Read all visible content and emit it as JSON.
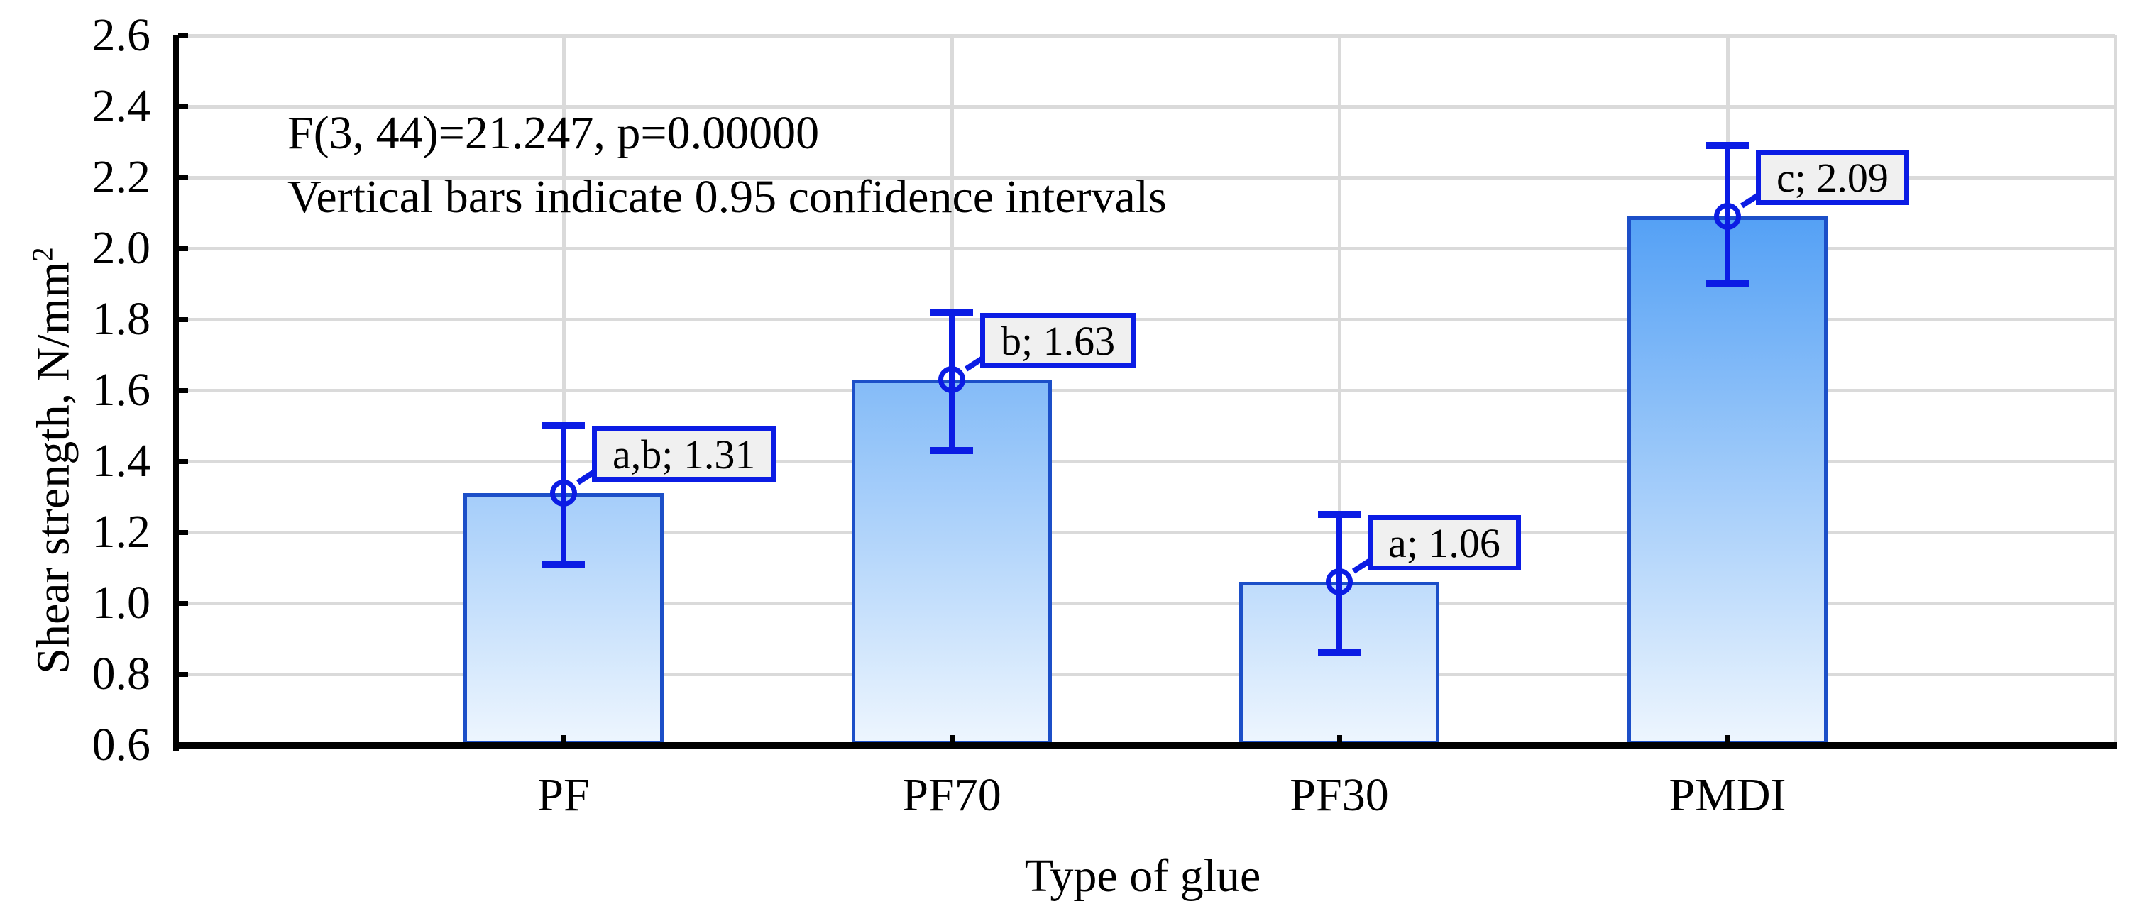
{
  "chart_data": {
    "type": "bar",
    "xlabel": "Type of glue",
    "ylabel": "Shear strength, N/mm2",
    "ylabel_base": "Shear strength, N/mm",
    "ylabel_sup": "2",
    "categories": [
      "PF",
      "PF70",
      "PF30",
      "PMDI"
    ],
    "values": [
      1.31,
      1.63,
      1.06,
      2.09
    ],
    "ci_low": [
      1.11,
      1.43,
      0.86,
      1.9
    ],
    "ci_high": [
      1.5,
      1.82,
      1.25,
      2.29
    ],
    "point_labels": [
      "a,b; 1.31",
      "b; 1.63",
      "a; 1.06",
      "c; 2.09"
    ],
    "annotation": {
      "line1": "F(3, 44)=21.247, p=0.00000",
      "line2": "Vertical bars indicate 0.95 confidence intervals"
    },
    "ylim": [
      0.6,
      2.6
    ],
    "ytick_labels": [
      "0.6",
      "0.8",
      "1.0",
      "1.2",
      "1.4",
      "1.6",
      "1.8",
      "2.0",
      "2.2",
      "2.4",
      "2.6"
    ],
    "legend": "none",
    "grid": {
      "horizontal_major": true,
      "vertical_at_category_centers": true,
      "right_edge_line": true
    },
    "colors": {
      "background": "#ffffff",
      "gridline": "#dadada",
      "axis": "#000000",
      "text": "#000000",
      "bar_gradient_top": "#1f83f2",
      "bar_gradient_bottom": "#eef6fe",
      "bar_border": "#1c4fc8",
      "error": "#0b1ce4",
      "label_box_fill": "#f0f0f0"
    }
  }
}
